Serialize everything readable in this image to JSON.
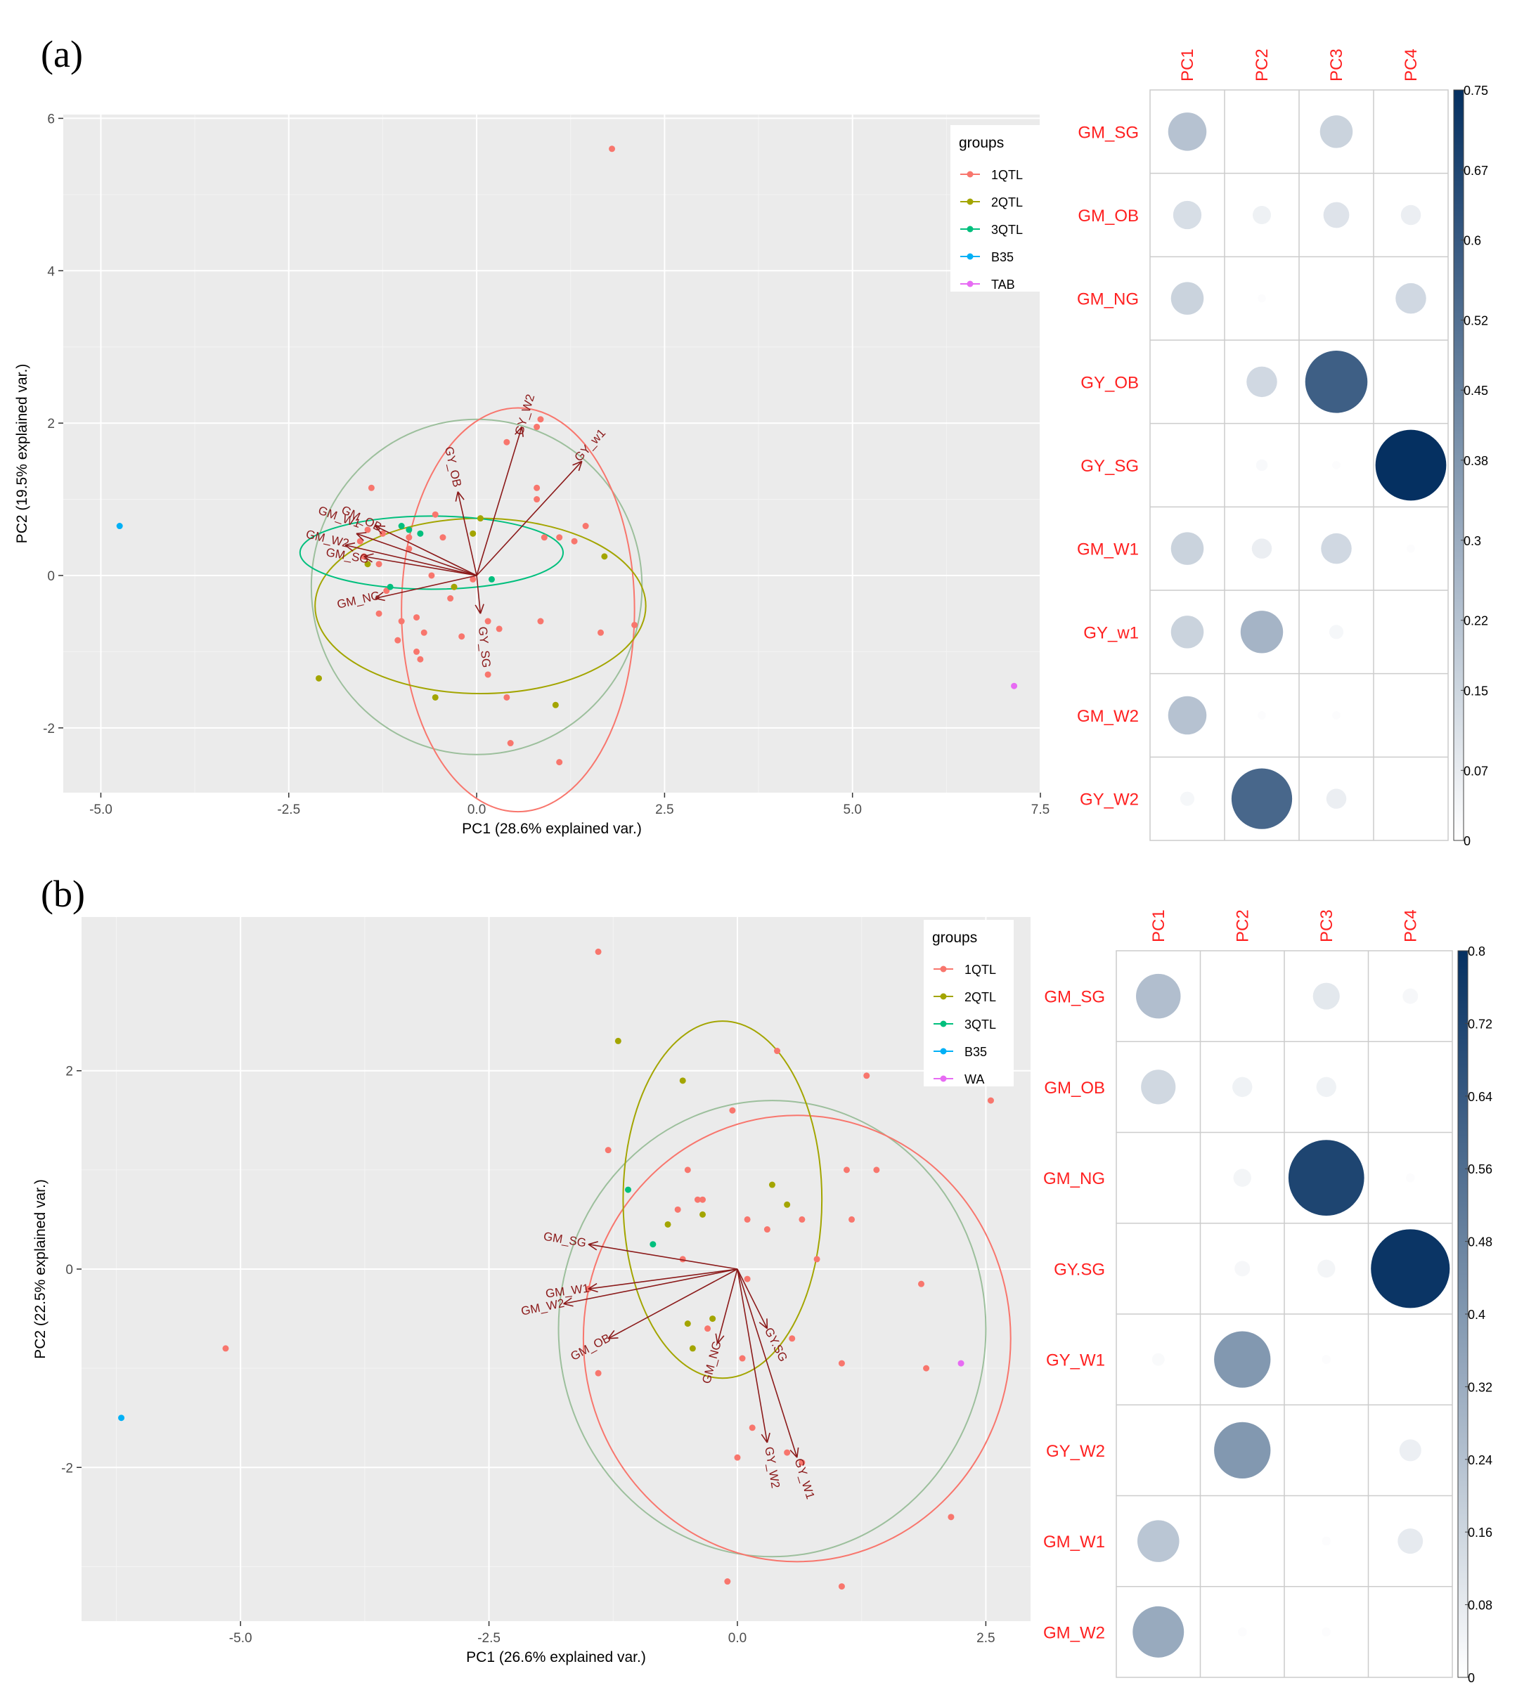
{
  "figure": {
    "panel_a_label": "(a)",
    "panel_b_label": "(b)"
  },
  "colors": {
    "panel_bg": "#ebebeb",
    "grid_major": "#ffffff",
    "arrow": "#8b1a1a",
    "row_label": "#ff2020",
    "1QTL": "#f8766d",
    "2QTL": "#a3a500",
    "3QTL": "#00bf7d",
    "B35": "#00b0f6",
    "TAB": "#e76bf3",
    "WA": "#e76bf3",
    "normal_ellipse": "#9cbf9c"
  },
  "chart_data": [
    {
      "type": "scatter",
      "subtype": "pca-biplot",
      "panel": "a",
      "xlabel": "PC1 (28.6% explained var.)",
      "ylabel": "PC2 (19.5% explained var.)",
      "xlim": [
        -5.5,
        7.5
      ],
      "ylim": [
        -2.85,
        6.05
      ],
      "xticks": [
        -5.0,
        -2.5,
        0.0,
        2.5,
        5.0,
        7.5
      ],
      "xtick_labels": [
        "-5.0",
        "-2.5",
        "0.0",
        "2.5",
        "5.0",
        "7.5"
      ],
      "yticks": [
        -2,
        0,
        2,
        4,
        6
      ],
      "ytick_labels": [
        "-2",
        "0",
        "2",
        "4",
        "6"
      ],
      "legend": {
        "title": "groups",
        "entries": [
          "1QTL",
          "2QTL",
          "3QTL",
          "B35",
          "TAB"
        ],
        "position": "top-right"
      },
      "series": [
        {
          "name": "1QTL",
          "points": [
            [
              1.8,
              5.6
            ],
            [
              0.4,
              1.75
            ],
            [
              0.85,
              2.05
            ],
            [
              0.8,
              1.95
            ],
            [
              0.8,
              1.15
            ],
            [
              0.8,
              1.0
            ],
            [
              -1.4,
              1.15
            ],
            [
              -0.9,
              0.5
            ],
            [
              -0.55,
              0.8
            ],
            [
              -0.45,
              0.5
            ],
            [
              -0.6,
              0.0
            ],
            [
              -0.9,
              0.35
            ],
            [
              -1.25,
              0.55
            ],
            [
              -1.45,
              0.6
            ],
            [
              -1.5,
              0.25
            ],
            [
              -1.3,
              0.15
            ],
            [
              -1.55,
              0.45
            ],
            [
              -1.2,
              -0.2
            ],
            [
              -0.3,
              -0.15
            ],
            [
              -0.35,
              -0.3
            ],
            [
              -0.05,
              -0.05
            ],
            [
              -1.3,
              -0.5
            ],
            [
              -1.0,
              -0.6
            ],
            [
              -0.8,
              -0.55
            ],
            [
              -0.7,
              -0.75
            ],
            [
              -1.05,
              -0.85
            ],
            [
              -0.8,
              -1.0
            ],
            [
              -0.75,
              -1.1
            ],
            [
              -0.2,
              -0.8
            ],
            [
              0.15,
              -0.6
            ],
            [
              0.9,
              0.5
            ],
            [
              1.1,
              0.5
            ],
            [
              1.3,
              0.45
            ],
            [
              1.45,
              0.65
            ],
            [
              0.3,
              -0.7
            ],
            [
              0.85,
              -0.6
            ],
            [
              1.65,
              -0.75
            ],
            [
              2.1,
              -0.65
            ],
            [
              0.15,
              -1.3
            ],
            [
              0.4,
              -1.6
            ],
            [
              0.45,
              -2.2
            ],
            [
              1.1,
              -2.45
            ]
          ]
        },
        {
          "name": "2QTL",
          "points": [
            [
              0.05,
              0.75
            ],
            [
              -0.05,
              0.55
            ],
            [
              -1.45,
              0.15
            ],
            [
              -0.3,
              -0.15
            ],
            [
              1.7,
              0.25
            ],
            [
              -2.1,
              -1.35
            ],
            [
              -0.55,
              -1.6
            ],
            [
              1.05,
              -1.7
            ]
          ]
        },
        {
          "name": "3QTL",
          "points": [
            [
              -1.0,
              0.65
            ],
            [
              -0.9,
              0.6
            ],
            [
              -0.75,
              0.55
            ],
            [
              -1.15,
              -0.15
            ],
            [
              0.2,
              -0.05
            ]
          ]
        },
        {
          "name": "B35",
          "points": [
            [
              -4.75,
              0.65
            ]
          ]
        },
        {
          "name": "TAB",
          "points": [
            [
              7.15,
              -1.45
            ]
          ]
        }
      ],
      "ellipses": [
        {
          "name": "normal",
          "cx": 0.0,
          "cy": -0.15,
          "rx": 2.2,
          "ry": 2.2
        },
        {
          "name": "1QTL",
          "cx": 0.55,
          "cy": -0.45,
          "rx": 1.55,
          "ry": 2.65
        },
        {
          "name": "2QTL",
          "cx": 0.05,
          "cy": -0.4,
          "rx": 2.2,
          "ry": 1.15
        },
        {
          "name": "3QTL",
          "cx": -0.6,
          "cy": 0.3,
          "rx": 1.75,
          "ry": 0.48
        }
      ],
      "loadings": [
        {
          "name": "GY_W2",
          "x": 0.6,
          "y": 1.95
        },
        {
          "name": "GY_w1",
          "x": 1.4,
          "y": 1.5
        },
        {
          "name": "GY_OB",
          "x": -0.25,
          "y": 1.1
        },
        {
          "name": "GM_OB",
          "x": -1.35,
          "y": 0.65
        },
        {
          "name": "GM_W1",
          "x": -1.6,
          "y": 0.55
        },
        {
          "name": "GM_W2",
          "x": -1.75,
          "y": 0.4
        },
        {
          "name": "GM_SG",
          "x": -1.5,
          "y": 0.25
        },
        {
          "name": "GM_NG",
          "x": -1.35,
          "y": -0.3
        },
        {
          "name": "GY_SG",
          "x": 0.05,
          "y": -0.5
        }
      ]
    },
    {
      "type": "heatmap",
      "subtype": "corrplot-circles",
      "panel": "a",
      "columns": [
        "PC1",
        "PC2",
        "PC3",
        "PC4"
      ],
      "rows": [
        "GM_SG",
        "GM_OB",
        "GM_NG",
        "GY_OB",
        "GY_SG",
        "GM_W1",
        "GY_w1",
        "GM_W2",
        "GY_W2"
      ],
      "values": [
        [
          0.22,
          0,
          0.16,
          0
        ],
        [
          0.12,
          0.05,
          0.1,
          0.06
        ],
        [
          0.16,
          0.01,
          0,
          0.14
        ],
        [
          0,
          0.14,
          0.58,
          0
        ],
        [
          0,
          0.02,
          0.01,
          0.75
        ],
        [
          0.16,
          0.06,
          0.14,
          0.01
        ],
        [
          0.16,
          0.27,
          0.03,
          0
        ],
        [
          0.22,
          0.01,
          0.01,
          0
        ],
        [
          0.03,
          0.55,
          0.06,
          0
        ]
      ],
      "vmax": 0.75,
      "colorbar_ticks": [
        0,
        0.07,
        0.15,
        0.22,
        0.3,
        0.38,
        0.45,
        0.52,
        0.6,
        0.67,
        0.75
      ],
      "colorbar_labels": [
        "0",
        "0.07",
        "0.15",
        "0.22",
        "0.3",
        "0.38",
        "0.45",
        "0.52",
        "0.6",
        "0.67",
        "0.75"
      ]
    },
    {
      "type": "scatter",
      "subtype": "pca-biplot",
      "panel": "b",
      "xlabel": "PC1 (26.6% explained var.)",
      "ylabel": "PC2 (22.5% explained var.)",
      "xlim": [
        -6.6,
        2.95
      ],
      "ylim": [
        -3.55,
        3.55
      ],
      "xticks": [
        -5.0,
        -2.5,
        0.0,
        2.5
      ],
      "xtick_labels": [
        "-5.0",
        "-2.5",
        "0.0",
        "2.5"
      ],
      "yticks": [
        -2,
        0,
        2
      ],
      "ytick_labels": [
        "-2",
        "0",
        "2"
      ],
      "legend": {
        "title": "groups",
        "entries": [
          "1QTL",
          "2QTL",
          "3QTL",
          "B35",
          "WA"
        ],
        "position": "top-right"
      },
      "series": [
        {
          "name": "1QTL",
          "points": [
            [
              -1.4,
              3.2
            ],
            [
              0.4,
              2.2
            ],
            [
              1.3,
              1.95
            ],
            [
              2.55,
              1.7
            ],
            [
              -0.05,
              1.6
            ],
            [
              -1.3,
              1.2
            ],
            [
              -0.5,
              1.0
            ],
            [
              -0.4,
              0.7
            ],
            [
              -0.35,
              0.7
            ],
            [
              -0.6,
              0.6
            ],
            [
              0.1,
              0.5
            ],
            [
              0.3,
              0.4
            ],
            [
              0.65,
              0.5
            ],
            [
              1.1,
              1.0
            ],
            [
              1.4,
              1.0
            ],
            [
              1.15,
              0.5
            ],
            [
              0.8,
              0.1
            ],
            [
              -0.55,
              0.1
            ],
            [
              0.1,
              -0.1
            ],
            [
              -1.5,
              -0.2
            ],
            [
              -0.3,
              -0.6
            ],
            [
              0.55,
              -0.7
            ],
            [
              0.05,
              -0.9
            ],
            [
              0.5,
              -1.85
            ],
            [
              0.65,
              -1.95
            ],
            [
              1.05,
              -0.95
            ],
            [
              1.85,
              -0.15
            ],
            [
              1.9,
              -1.0
            ],
            [
              0.15,
              -1.6
            ],
            [
              0.0,
              -1.9
            ],
            [
              -1.4,
              -1.05
            ],
            [
              -5.15,
              -0.8
            ],
            [
              -0.1,
              -3.15
            ],
            [
              1.05,
              -3.2
            ],
            [
              2.15,
              -2.5
            ]
          ]
        },
        {
          "name": "2QTL",
          "points": [
            [
              -1.2,
              2.3
            ],
            [
              -0.55,
              1.9
            ],
            [
              0.35,
              0.85
            ],
            [
              0.5,
              0.65
            ],
            [
              -0.7,
              0.45
            ],
            [
              -0.35,
              0.55
            ],
            [
              -0.5,
              -0.55
            ],
            [
              -0.25,
              -0.5
            ],
            [
              -0.45,
              -0.8
            ]
          ]
        },
        {
          "name": "3QTL",
          "points": [
            [
              -1.1,
              0.8
            ],
            [
              -0.85,
              0.25
            ]
          ]
        },
        {
          "name": "B35",
          "points": [
            [
              -6.2,
              -1.5
            ]
          ]
        },
        {
          "name": "WA",
          "points": [
            [
              2.25,
              -0.95
            ]
          ]
        }
      ],
      "ellipses": [
        {
          "name": "normal",
          "cx": 0.35,
          "cy": -0.6,
          "rx": 2.15,
          "ry": 2.3
        },
        {
          "name": "1QTL",
          "cx": 0.6,
          "cy": -0.7,
          "rx": 2.15,
          "ry": 2.25
        },
        {
          "name": "2QTL",
          "cx": -0.15,
          "cy": 0.7,
          "rx": 1.0,
          "ry": 1.8
        }
      ],
      "loadings": [
        {
          "name": "GM_SG",
          "x": -1.5,
          "y": 0.25
        },
        {
          "name": "GM_W1",
          "x": -1.5,
          "y": -0.2
        },
        {
          "name": "GM_W2",
          "x": -1.75,
          "y": -0.35
        },
        {
          "name": "GM_OB",
          "x": -1.3,
          "y": -0.7
        },
        {
          "name": "GM_NG",
          "x": -0.2,
          "y": -0.75
        },
        {
          "name": "GY.SG",
          "x": 0.3,
          "y": -0.6
        },
        {
          "name": "GY_W2",
          "x": 0.3,
          "y": -1.75
        },
        {
          "name": "GY_W1",
          "x": 0.6,
          "y": -1.9
        }
      ]
    },
    {
      "type": "heatmap",
      "subtype": "corrplot-circles",
      "panel": "b",
      "columns": [
        "PC1",
        "PC2",
        "PC3",
        "PC4"
      ],
      "rows": [
        "GM_SG",
        "GM_OB",
        "GM_NG",
        "GY.SG",
        "GY_W1",
        "GY_W2",
        "GM_W1",
        "GM_W2"
      ],
      "values": [
        [
          0.25,
          0,
          0.09,
          0.03
        ],
        [
          0.15,
          0.05,
          0.05,
          0
        ],
        [
          0,
          0.04,
          0.72,
          0.01
        ],
        [
          0,
          0.03,
          0.04,
          0.78
        ],
        [
          0.02,
          0.4,
          0.01,
          0
        ],
        [
          0,
          0.4,
          0,
          0.06
        ],
        [
          0.22,
          0,
          0.01,
          0.08
        ],
        [
          0.33,
          0.01,
          0.01,
          0
        ]
      ],
      "vmax": 0.8,
      "colorbar_ticks": [
        0,
        0.08,
        0.16,
        0.24,
        0.32,
        0.4,
        0.48,
        0.56,
        0.64,
        0.72,
        0.8
      ],
      "colorbar_labels": [
        "0",
        "0.08",
        "0.16",
        "0.24",
        "0.32",
        "0.4",
        "0.48",
        "0.56",
        "0.64",
        "0.72",
        "0.8"
      ]
    }
  ]
}
